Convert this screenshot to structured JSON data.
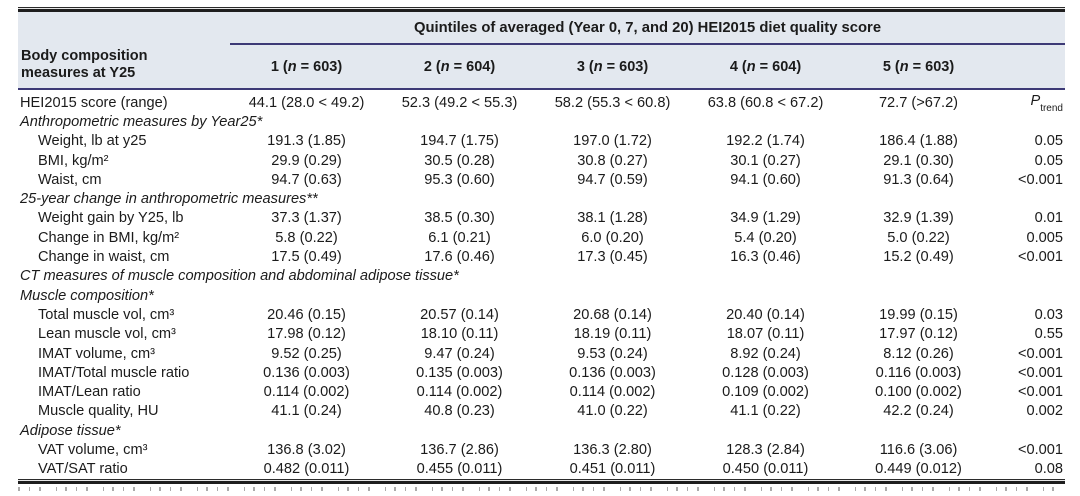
{
  "table": {
    "header": {
      "stub": "Body composition\nmeasures at Y25",
      "span_title": "Quintiles of averaged (Year 0, 7, and 20) HEI2015 diet quality score",
      "quintiles": [
        "1 (n = 603)",
        "2 (n = 604)",
        "3 (n = 603)",
        "4 (n = 604)",
        "5 (n = 603)"
      ],
      "p_trend": {
        "main": "P",
        "sub": "trend"
      }
    },
    "rows": [
      {
        "type": "data",
        "indent": false,
        "label": "HEI2015 score (range)",
        "cells": [
          "44.1 (28.0 < 49.2)",
          "52.3 (49.2 < 55.3)",
          "58.2 (55.3 < 60.8)",
          "63.8 (60.8 < 67.2)",
          "72.7 (>67.2)"
        ],
        "p": null,
        "p_is_trend_header": true
      },
      {
        "type": "section",
        "label": "Anthropometric measures by Year25*"
      },
      {
        "type": "data",
        "indent": true,
        "label": "Weight, lb at y25",
        "cells": [
          "191.3 (1.85)",
          "194.7 (1.75)",
          "197.0 (1.72)",
          "192.2 (1.74)",
          "186.4 (1.88)"
        ],
        "p": "0.05"
      },
      {
        "type": "data",
        "indent": true,
        "label": "BMI, kg/m²",
        "cells": [
          "29.9 (0.29)",
          "30.5 (0.28)",
          "30.8 (0.27)",
          "30.1 (0.27)",
          "29.1 (0.30)"
        ],
        "p": "0.05"
      },
      {
        "type": "data",
        "indent": true,
        "label": "Waist, cm",
        "cells": [
          "94.7 (0.63)",
          "95.3 (0.60)",
          "94.7 (0.59)",
          "94.1 (0.60)",
          "91.3 (0.64)"
        ],
        "p": "<0.001"
      },
      {
        "type": "section",
        "label": "25-year change in anthropometric measures**"
      },
      {
        "type": "data",
        "indent": true,
        "label": "Weight gain by Y25, lb",
        "cells": [
          "37.3 (1.37)",
          "38.5 (0.30)",
          "38.1 (1.28)",
          "34.9 (1.29)",
          "32.9 (1.39)"
        ],
        "p": "0.01"
      },
      {
        "type": "data",
        "indent": true,
        "label": "Change in BMI, kg/m²",
        "cells": [
          "5.8 (0.22)",
          "6.1 (0.21)",
          "6.0 (0.20)",
          "5.4 (0.20)",
          "5.0 (0.22)"
        ],
        "p": "0.005"
      },
      {
        "type": "data",
        "indent": true,
        "label": "Change in waist, cm",
        "cells": [
          "17.5 (0.49)",
          "17.6 (0.46)",
          "17.3 (0.45)",
          "16.3 (0.46)",
          "15.2 (0.49)"
        ],
        "p": "<0.001"
      },
      {
        "type": "section",
        "label": "CT measures of muscle composition and abdominal adipose tissue*"
      },
      {
        "type": "section",
        "label": "Muscle composition*"
      },
      {
        "type": "data",
        "indent": true,
        "label": "Total muscle vol, cm³",
        "cells": [
          "20.46 (0.15)",
          "20.57 (0.14)",
          "20.68 (0.14)",
          "20.40 (0.14)",
          "19.99 (0.15)"
        ],
        "p": "0.03"
      },
      {
        "type": "data",
        "indent": true,
        "label": "Lean muscle vol, cm³",
        "cells": [
          "17.98 (0.12)",
          "18.10 (0.11)",
          "18.19 (0.11)",
          "18.07 (0.11)",
          "17.97 (0.12)"
        ],
        "p": "0.55"
      },
      {
        "type": "data",
        "indent": true,
        "label": "IMAT volume, cm³",
        "cells": [
          "9.52 (0.25)",
          "9.47 (0.24)",
          "9.53 (0.24)",
          "8.92 (0.24)",
          "8.12 (0.26)"
        ],
        "p": "<0.001"
      },
      {
        "type": "data",
        "indent": true,
        "label": "IMAT/Total muscle ratio",
        "cells": [
          "0.136 (0.003)",
          "0.135 (0.003)",
          "0.136 (0.003)",
          "0.128 (0.003)",
          "0.116 (0.003)"
        ],
        "p": "<0.001"
      },
      {
        "type": "data",
        "indent": true,
        "label": "IMAT/Lean ratio",
        "cells": [
          "0.114 (0.002)",
          "0.114 (0.002)",
          "0.114 (0.002)",
          "0.109 (0.002)",
          "0.100 (0.002)"
        ],
        "p": "<0.001"
      },
      {
        "type": "data",
        "indent": true,
        "label": "Muscle quality, HU",
        "cells": [
          "41.1 (0.24)",
          "40.8 (0.23)",
          "41.0 (0.22)",
          "41.1 (0.22)",
          "42.2 (0.24)"
        ],
        "p": "0.002"
      },
      {
        "type": "section",
        "label": "Adipose tissue*"
      },
      {
        "type": "data",
        "indent": true,
        "label": "VAT volume, cm³",
        "cells": [
          "136.8 (3.02)",
          "136.7 (2.86)",
          "136.3 (2.80)",
          "128.3 (2.84)",
          "116.6 (3.06)"
        ],
        "p": "<0.001"
      },
      {
        "type": "data",
        "indent": true,
        "label": "VAT/SAT ratio",
        "cells": [
          "0.482 (0.011)",
          "0.455 (0.011)",
          "0.451 (0.011)",
          "0.450 (0.011)",
          "0.449 (0.012)"
        ],
        "p": "0.08"
      }
    ]
  },
  "colors": {
    "header_bg": "#e3e8ef",
    "rule_navy": "#3d3a76",
    "rule_black": "#1e1e1e",
    "text": "#1b1b1b"
  }
}
